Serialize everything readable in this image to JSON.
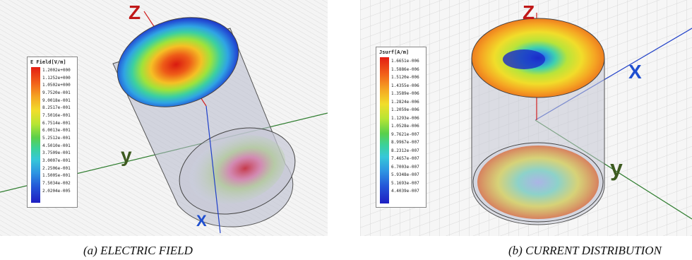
{
  "figure_a": {
    "axis_labels": {
      "z": "Z",
      "y": "y",
      "x": "X"
    },
    "legend": {
      "title": "E Field[V/m]",
      "values": [
        "1.2002e+000",
        "1.1252e+000",
        "1.0502e+000",
        "9.7520e-001",
        "9.0018e-001",
        "8.2517e-001",
        "7.5016e-001",
        "6.7514e-001",
        "6.0013e-001",
        "5.2512e-001",
        "4.5010e-001",
        "3.7509e-001",
        "3.0007e-001",
        "2.2506e-001",
        "1.5005e-001",
        "7.5034e-002",
        "2.0204e-005"
      ]
    },
    "caption": "(a) ELECTRIC FIELD"
  },
  "figure_b": {
    "axis_labels": {
      "z": "Z",
      "x": "X",
      "y": "y"
    },
    "legend": {
      "title": "Jsurf[A/m]",
      "values": [
        "1.6651e-006",
        "1.5886e-006",
        "1.5120e-006",
        "1.4355e-006",
        "1.3589e-006",
        "1.2824e-006",
        "1.2059e-006",
        "1.1293e-006",
        "1.0528e-006",
        "9.7621e-007",
        "8.9967e-007",
        "8.2312e-007",
        "7.4657e-007",
        "6.7003e-007",
        "5.9348e-007",
        "5.1693e-007",
        "4.4039e-007"
      ]
    },
    "caption": "(b) CURRENT DISTRIBUTION"
  },
  "colors": {
    "red": "#e31d12",
    "orange": "#f5a623",
    "yellow": "#f1dd2a",
    "green": "#5ad04a",
    "cyan": "#36c8d8",
    "blue": "#1e1ec2",
    "axis_green": "#2f7d2f",
    "axis_blue": "#2040c8",
    "axis_red": "#d02020"
  }
}
